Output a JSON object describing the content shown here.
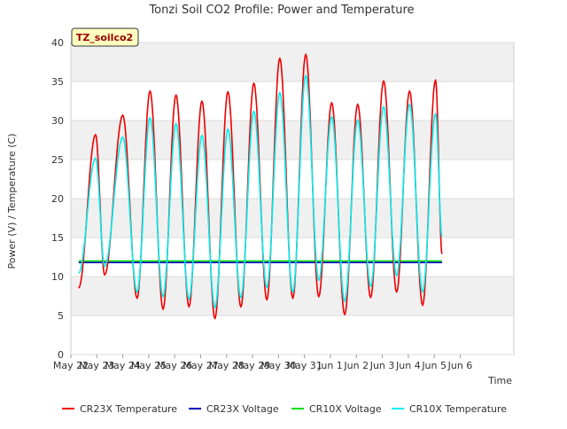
{
  "chart_data": {
    "type": "line",
    "title": "Tonzi Soil CO2 Profile: Power and Temperature",
    "badge": "TZ_soilco2",
    "xlabel": "Time",
    "ylabel": "Power (V) / Temperature (C)",
    "ylim": [
      0,
      40
    ],
    "yticks": [
      0,
      5,
      10,
      15,
      20,
      25,
      30,
      35,
      40
    ],
    "xlim": [
      0,
      16
    ],
    "xticks": [
      {
        "v": 0,
        "label": "May 22"
      },
      {
        "v": 1,
        "label": "May 23"
      },
      {
        "v": 2,
        "label": "May 24"
      },
      {
        "v": 3,
        "label": "May 25"
      },
      {
        "v": 4,
        "label": "May 26"
      },
      {
        "v": 5,
        "label": "May 27"
      },
      {
        "v": 6,
        "label": "May 28"
      },
      {
        "v": 7,
        "label": "May 29"
      },
      {
        "v": 8,
        "label": "May 30"
      },
      {
        "v": 9,
        "label": "May 31"
      },
      {
        "v": 10,
        "label": "Jun 1"
      },
      {
        "v": 11,
        "label": "Jun 2"
      },
      {
        "v": 12,
        "label": "Jun 3"
      },
      {
        "v": 13,
        "label": "Jun 4"
      },
      {
        "v": 14,
        "label": "Jun 5"
      },
      {
        "v": 15,
        "label": "Jun 6"
      }
    ],
    "grid": true,
    "legend_position": "bottom",
    "series": [
      {
        "name": "CR23X Temperature",
        "color": "#ee0000",
        "min_points": [
          [
            0.3,
            8.5
          ],
          [
            1.3,
            10.2
          ],
          [
            2.55,
            7.2
          ],
          [
            3.55,
            5.8
          ],
          [
            4.55,
            6.1
          ],
          [
            5.55,
            4.6
          ],
          [
            6.55,
            6.1
          ],
          [
            7.55,
            7.0
          ],
          [
            8.55,
            7.2
          ],
          [
            9.55,
            7.4
          ],
          [
            10.55,
            5.1
          ],
          [
            11.55,
            7.3
          ],
          [
            12.55,
            8.0
          ],
          [
            13.55,
            6.3
          ]
        ],
        "max_points": [
          [
            0.95,
            28.2
          ],
          [
            2.0,
            30.7
          ],
          [
            3.05,
            33.8
          ],
          [
            4.05,
            33.3
          ],
          [
            5.05,
            32.5
          ],
          [
            6.05,
            33.7
          ],
          [
            7.05,
            34.8
          ],
          [
            8.05,
            38.0
          ],
          [
            9.05,
            38.5
          ],
          [
            10.05,
            32.3
          ],
          [
            11.05,
            32.1
          ],
          [
            12.05,
            35.1
          ],
          [
            13.05,
            33.8
          ],
          [
            14.05,
            35.2
          ]
        ],
        "end": [
          14.3,
          12.9
        ]
      },
      {
        "name": "CR23X Voltage",
        "color": "#0000bb",
        "values": [
          [
            0.3,
            11.8
          ],
          [
            14.3,
            11.8
          ]
        ]
      },
      {
        "name": "CR10X Voltage",
        "color": "#00dd00",
        "values": [
          [
            0.3,
            12.0
          ],
          [
            14.3,
            12.0
          ]
        ]
      },
      {
        "name": "CR10X Temperature",
        "color": "#00eeee",
        "min_points": [
          [
            0.3,
            10.4
          ],
          [
            1.3,
            11.3
          ],
          [
            2.55,
            8.0
          ],
          [
            3.55,
            7.4
          ],
          [
            4.55,
            7.1
          ],
          [
            5.55,
            6.0
          ],
          [
            6.55,
            7.3
          ],
          [
            7.55,
            8.6
          ],
          [
            8.55,
            8.0
          ],
          [
            9.55,
            9.5
          ],
          [
            10.55,
            6.8
          ],
          [
            11.55,
            8.7
          ],
          [
            12.55,
            10.1
          ],
          [
            13.55,
            8.0
          ]
        ],
        "max_points": [
          [
            0.95,
            25.2
          ],
          [
            2.0,
            27.9
          ],
          [
            3.05,
            30.4
          ],
          [
            4.05,
            29.6
          ],
          [
            5.05,
            28.1
          ],
          [
            6.05,
            28.9
          ],
          [
            7.05,
            31.2
          ],
          [
            8.05,
            33.6
          ],
          [
            9.05,
            35.8
          ],
          [
            10.05,
            30.5
          ],
          [
            11.05,
            30.1
          ],
          [
            12.05,
            31.8
          ],
          [
            13.05,
            32.1
          ],
          [
            14.05,
            30.9
          ]
        ],
        "end": [
          14.3,
          15.1
        ]
      }
    ]
  }
}
